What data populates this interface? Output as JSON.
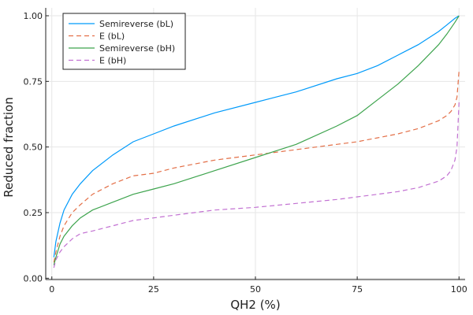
{
  "chart_data": {
    "type": "line",
    "title": "",
    "xlabel": "QH2 (%)",
    "ylabel": "Reduced fraction",
    "xlim": [
      -1.5,
      101.5
    ],
    "ylim": [
      -0.005,
      1.03
    ],
    "xticks": [
      0,
      25,
      50,
      75,
      100
    ],
    "xtick_labels": [
      "0",
      "25",
      "50",
      "75",
      "100"
    ],
    "yticks": [
      0,
      0.25,
      0.5,
      0.75,
      1.0
    ],
    "ytick_labels": [
      "0.00",
      "0.25",
      "0.50",
      "0.75",
      "1.00"
    ],
    "grid": true,
    "legend_position": "top-left",
    "series": [
      {
        "name": "Semireverse (bL)",
        "color": "#009AFA",
        "dash": "solid",
        "x": [
          0.5,
          1,
          2,
          3,
          5,
          7,
          10,
          15,
          20,
          25,
          30,
          40,
          50,
          55,
          60,
          70,
          75,
          80,
          85,
          90,
          95,
          97,
          99,
          100
        ],
        "y": [
          0.08,
          0.14,
          0.21,
          0.26,
          0.32,
          0.36,
          0.41,
          0.47,
          0.52,
          0.55,
          0.58,
          0.63,
          0.67,
          0.69,
          0.71,
          0.76,
          0.78,
          0.81,
          0.85,
          0.89,
          0.94,
          0.965,
          0.99,
          1.0
        ]
      },
      {
        "name": "E (bL)",
        "color": "#E36F47",
        "dash": "dashed",
        "x": [
          0.5,
          1,
          2,
          3,
          5,
          7,
          10,
          15,
          20,
          25,
          30,
          40,
          50,
          60,
          70,
          75,
          80,
          85,
          90,
          95,
          97,
          98,
          99,
          99.5,
          100
        ],
        "y": [
          0.06,
          0.1,
          0.16,
          0.2,
          0.25,
          0.28,
          0.32,
          0.36,
          0.39,
          0.4,
          0.42,
          0.45,
          0.47,
          0.49,
          0.51,
          0.52,
          0.535,
          0.55,
          0.57,
          0.6,
          0.62,
          0.635,
          0.66,
          0.69,
          0.79
        ]
      },
      {
        "name": "Semireverse (bH)",
        "color": "#3EA44E",
        "dash": "solid",
        "x": [
          0.5,
          1,
          2,
          3,
          5,
          7,
          10,
          15,
          20,
          25,
          30,
          40,
          50,
          55,
          60,
          70,
          75,
          80,
          85,
          90,
          95,
          97,
          99,
          100
        ],
        "y": [
          0.05,
          0.08,
          0.13,
          0.16,
          0.2,
          0.23,
          0.26,
          0.29,
          0.32,
          0.34,
          0.36,
          0.41,
          0.46,
          0.485,
          0.51,
          0.58,
          0.62,
          0.68,
          0.74,
          0.81,
          0.89,
          0.93,
          0.975,
          1.0
        ]
      },
      {
        "name": "E (bH)",
        "color": "#C271D2",
        "dash": "dashed",
        "x": [
          0.5,
          1,
          2,
          3,
          5,
          7,
          10,
          15,
          20,
          25,
          30,
          40,
          50,
          60,
          70,
          75,
          80,
          85,
          90,
          95,
          97,
          98,
          99,
          99.5,
          100
        ],
        "y": [
          0.04,
          0.07,
          0.1,
          0.12,
          0.15,
          0.17,
          0.18,
          0.2,
          0.22,
          0.23,
          0.24,
          0.26,
          0.27,
          0.285,
          0.3,
          0.31,
          0.32,
          0.33,
          0.345,
          0.37,
          0.39,
          0.41,
          0.45,
          0.5,
          0.67
        ]
      }
    ]
  }
}
